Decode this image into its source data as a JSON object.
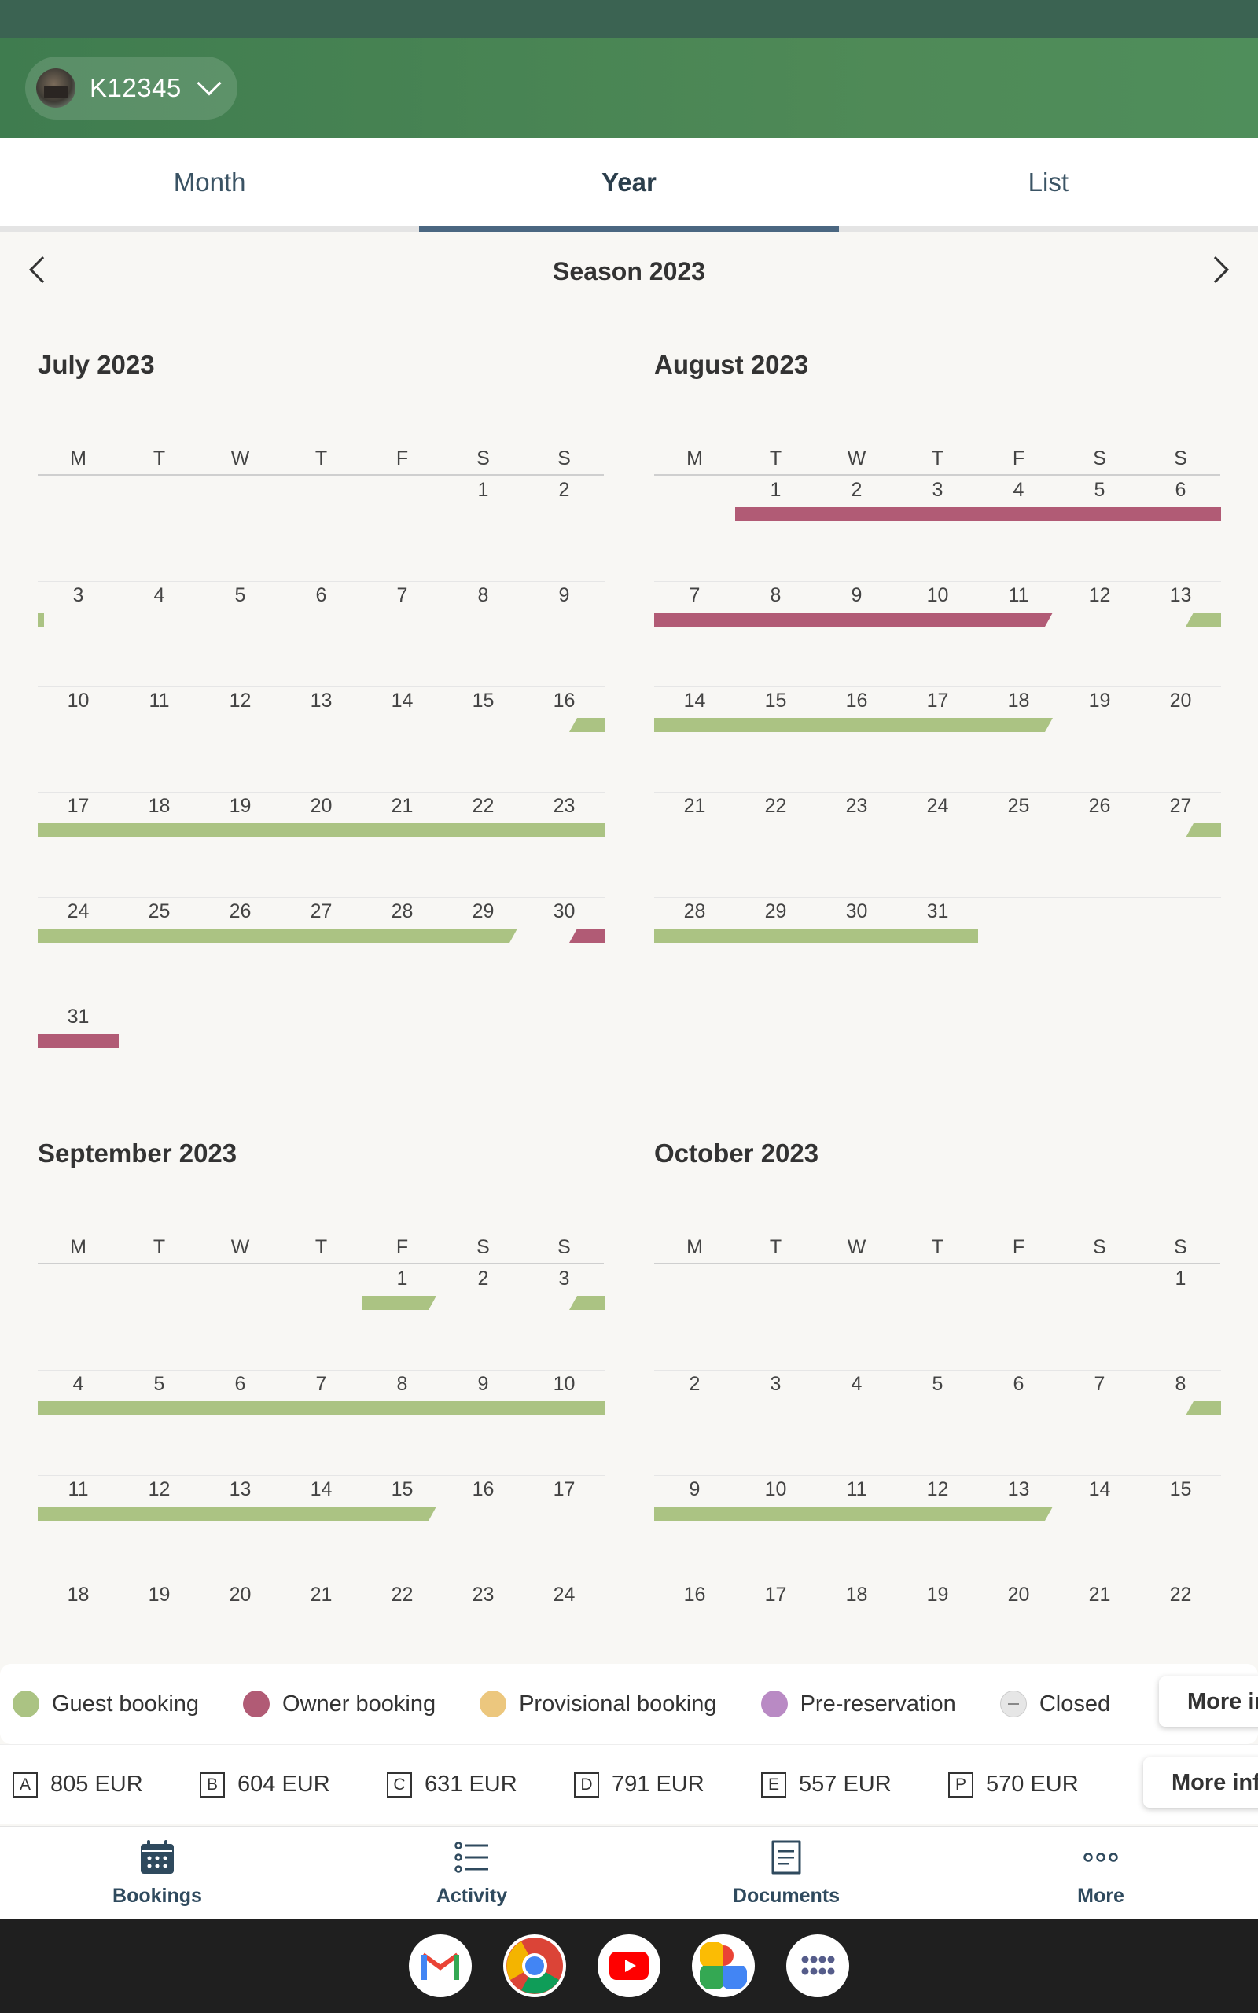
{
  "header": {
    "property_id": "K12345"
  },
  "tabs": [
    {
      "label": "Month"
    },
    {
      "label": "Year"
    },
    {
      "label": "List"
    }
  ],
  "season": {
    "title": "Season 2023"
  },
  "weekday_labels": [
    "M",
    "T",
    "W",
    "T",
    "F",
    "S",
    "S"
  ],
  "months": [
    {
      "title": "July 2023",
      "offset": 5,
      "days": 31,
      "bookings": [
        {
          "type": "guest",
          "start": 3,
          "end": 3,
          "sliver_start": true
        },
        {
          "type": "guest",
          "start": 16,
          "end": 29,
          "half_start": true,
          "half_end": true
        },
        {
          "type": "owner",
          "start": 30,
          "end": 31,
          "half_start": true
        }
      ]
    },
    {
      "title": "August 2023",
      "offset": 1,
      "days": 31,
      "bookings": [
        {
          "type": "owner",
          "start": 1,
          "end": 11,
          "half_end": true
        },
        {
          "type": "guest",
          "start": 13,
          "end": 18,
          "half_start": true,
          "half_end": true
        },
        {
          "type": "guest",
          "start": 27,
          "end": 31,
          "half_start": true
        }
      ]
    },
    {
      "title": "September 2023",
      "offset": 4,
      "days": 24,
      "bookings": [
        {
          "type": "guest",
          "start": 1,
          "end": 1,
          "half_end": true
        },
        {
          "type": "guest",
          "start": 3,
          "end": 15,
          "half_start": true,
          "half_end": true
        }
      ]
    },
    {
      "title": "October 2023",
      "offset": 6,
      "days": 22,
      "bookings": [
        {
          "type": "guest",
          "start": 8,
          "end": 13,
          "half_start": true,
          "half_end": true
        }
      ]
    }
  ],
  "legend": [
    {
      "label": "Guest booking",
      "color": "#abc383"
    },
    {
      "label": "Owner booking",
      "color": "#b15b75"
    },
    {
      "label": "Provisional booking",
      "color": "#ecc77e"
    },
    {
      "label": "Pre-reservation",
      "color": "#b98ac4"
    },
    {
      "label": "Closed",
      "color": "#e6e6e6"
    }
  ],
  "legend_more": "More info",
  "prices": [
    {
      "code": "A",
      "value": "805 EUR"
    },
    {
      "code": "B",
      "value": "604 EUR"
    },
    {
      "code": "C",
      "value": "631 EUR"
    },
    {
      "code": "D",
      "value": "791 EUR"
    },
    {
      "code": "E",
      "value": "557 EUR"
    },
    {
      "code": "P",
      "value": "570 EUR"
    }
  ],
  "prices_more": "More info",
  "bottom_nav": [
    {
      "label": "Bookings",
      "icon": "calendar-icon"
    },
    {
      "label": "Activity",
      "icon": "list-icon"
    },
    {
      "label": "Documents",
      "icon": "document-icon"
    },
    {
      "label": "More",
      "icon": "more-icon"
    }
  ],
  "dock_apps": [
    "gmail",
    "chrome",
    "youtube",
    "photos",
    "app-drawer"
  ]
}
